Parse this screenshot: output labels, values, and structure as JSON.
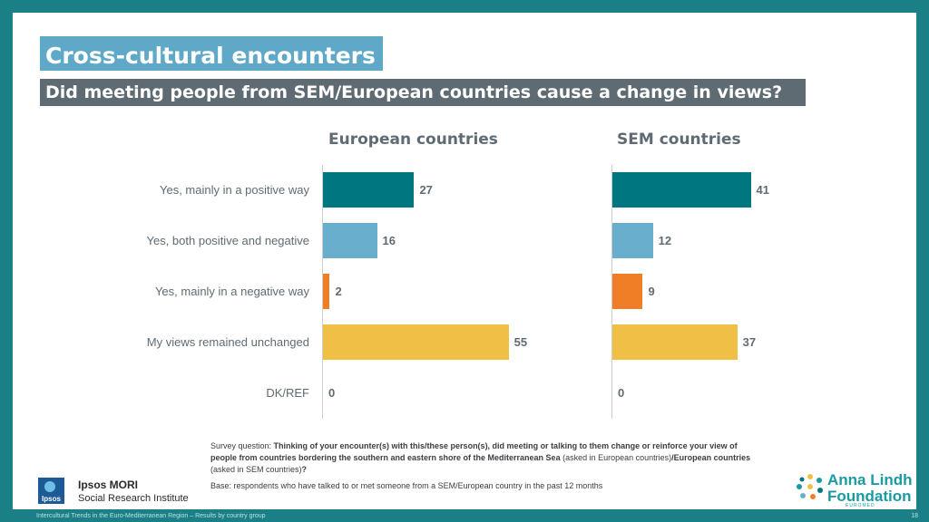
{
  "header": {
    "title": "Cross-cultural encounters",
    "subtitle": "Did meeting people from SEM/European countries cause a change in views?"
  },
  "chart_data": [
    {
      "type": "bar",
      "orientation": "horizontal",
      "title": "European countries",
      "categories": [
        "Yes, mainly in a positive way",
        "Yes, both positive and negative",
        "Yes, mainly in a negative way",
        "My views remained unchanged",
        "DK/REF"
      ],
      "values": [
        27,
        16,
        2,
        55,
        0
      ],
      "xlim": [
        0,
        80
      ],
      "grid": false
    },
    {
      "type": "bar",
      "orientation": "horizontal",
      "title": "SEM countries",
      "categories": [
        "Yes, mainly in a positive way",
        "Yes, both positive and negative",
        "Yes, mainly in a negative way",
        "My views remained unchanged",
        "DK/REF"
      ],
      "values": [
        41,
        12,
        9,
        37,
        0
      ],
      "xlim": [
        0,
        80
      ],
      "grid": false
    }
  ],
  "colors": {
    "bars": [
      "#007680",
      "#6aaecd",
      "#f07e26",
      "#f0bf46",
      "#bfbfbf"
    ],
    "background": "#1a7f86",
    "title_bg": "#5fa8c8",
    "subtitle_bg": "#5f6b72"
  },
  "notes": {
    "question_prefix": "Survey question: ",
    "question_bold1": "Thinking of your encounter(s) with this/these person(s), did meeting or talking to them change or reinforce your view of people from countries bordering the southern and eastern shore of the Mediterranean Sea",
    "question_normal1": " (asked in European countries)",
    "question_bold2": "/European countries",
    "question_normal2": " (asked in SEM countries)",
    "question_end": "?",
    "base": "Base: respondents who have talked to or met someone from a SEM/European country in the past 12 months"
  },
  "footer": {
    "ipsos_box": "Ipsos",
    "ipsos_name": "Ipsos MORI",
    "ipsos_sub": "Social Research Institute",
    "left": "Intercultural Trends in the Euro-Mediterranean Region – Results by country group",
    "page": "18",
    "al_line1": "Anna Lindh",
    "al_line2": "Foundation",
    "al_line3": "EUROMED"
  }
}
